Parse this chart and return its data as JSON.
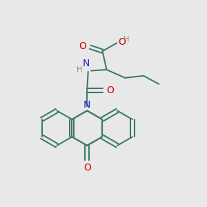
{
  "bg_color": "#e8e8e8",
  "atom_colors": {
    "C": "#3d7a6e",
    "N": "#2020cc",
    "O": "#cc0000",
    "H_label": "#888888"
  },
  "bond_color": "#3d7a6e",
  "figsize": [
    3.0,
    3.0
  ],
  "dpi": 100
}
